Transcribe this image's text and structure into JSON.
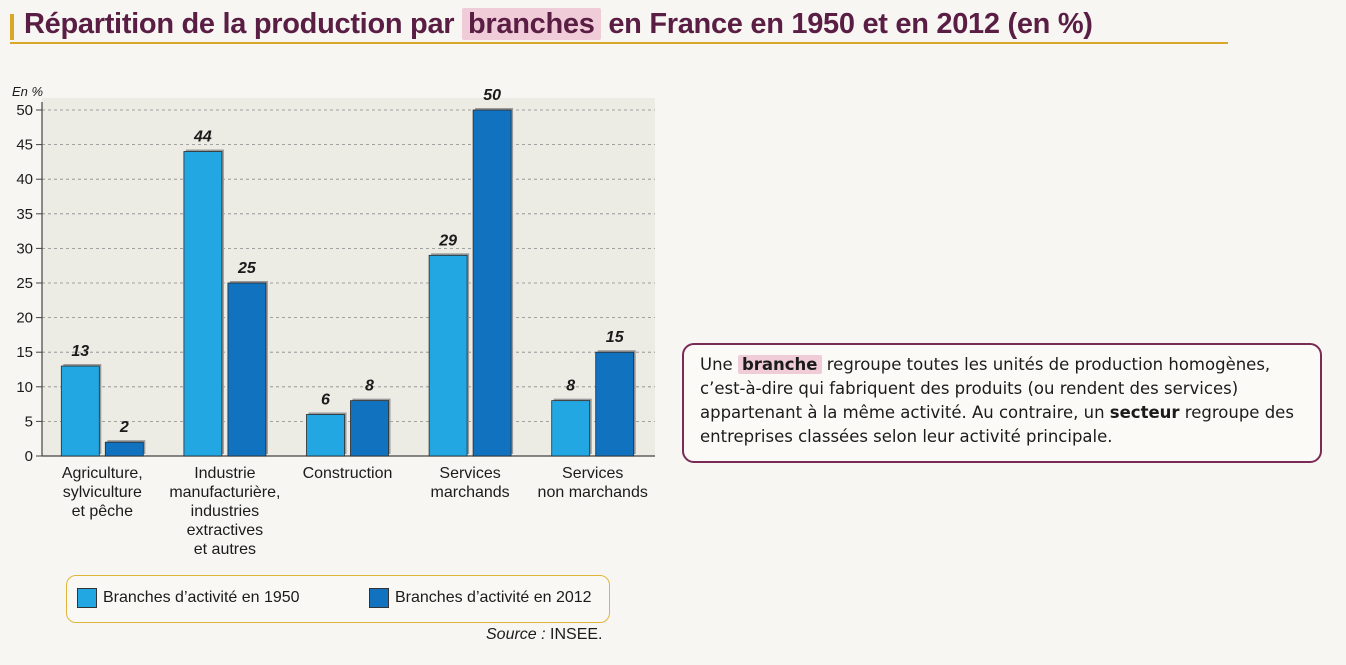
{
  "title": {
    "before": "Répartition de la production par ",
    "highlight": "branches",
    "after": " en France en 1950 et en 2012 (en %)"
  },
  "chart_data": {
    "type": "bar",
    "ylabel": "En %",
    "ylim": [
      0,
      50
    ],
    "yticks": [
      "0",
      "5",
      "10",
      "15",
      "20",
      "25",
      "30",
      "35",
      "40",
      "45",
      "50"
    ],
    "grid": true,
    "categories": [
      [
        "Agriculture,",
        "sylviculture",
        "et pêche"
      ],
      [
        "Industrie",
        "manufacturière,",
        "industries",
        "extractives",
        "et autres"
      ],
      [
        "Construction"
      ],
      [
        "Services",
        "marchands"
      ],
      [
        "Services",
        "non marchands"
      ]
    ],
    "series": [
      {
        "name": "Branches d’activité en 1950",
        "color": "#22a7e2",
        "values": [
          13,
          44,
          6,
          29,
          8
        ],
        "labels": [
          "13",
          "44",
          "6",
          "29",
          "8"
        ]
      },
      {
        "name": "Branches d’activité en 2012",
        "color": "#1172bf",
        "values": [
          2,
          25,
          8,
          50,
          15
        ],
        "labels": [
          "2",
          "25",
          "8",
          "50",
          "15"
        ]
      }
    ],
    "legend_position": "bottom"
  },
  "source": {
    "prefix": "Source :",
    "text": " INSEE."
  },
  "note": {
    "p1": "Une ",
    "highlight": "branche",
    "p2": " regroupe toutes les unités de production homogènes, c’est-à-dire qui fabriquent des produits (ou rendent des services) appartenant à la même activité. Au contraire, un ",
    "bold": "secteur",
    "p3": " regroupe des entreprises classées selon leur activité principale."
  }
}
